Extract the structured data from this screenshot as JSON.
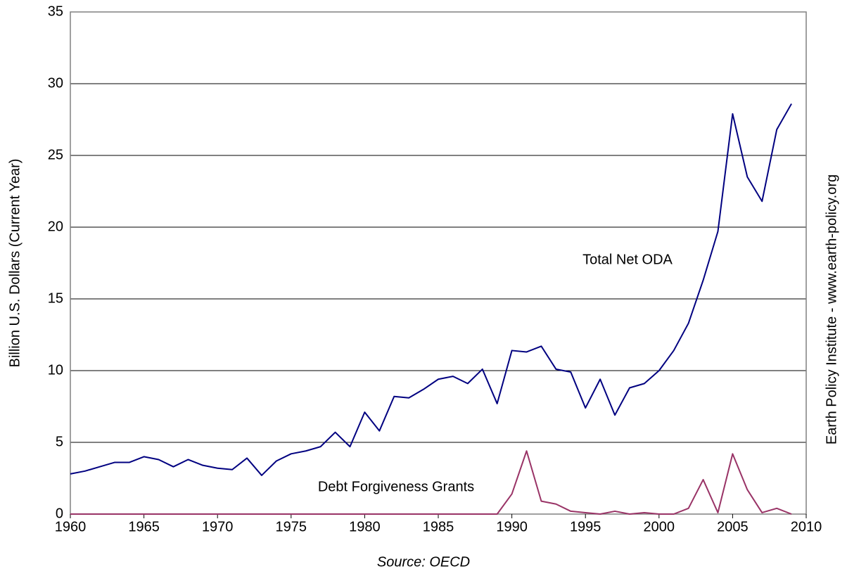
{
  "chart_data": {
    "type": "line",
    "y_label": "Billion U.S. Dollars (Current Year)",
    "source": "Source: OECD",
    "credit": "Earth Policy Institute - www.earth-policy.org",
    "annotations": [
      "Total Net ODA",
      "Debt Forgiveness Grants"
    ],
    "x": [
      1960,
      1961,
      1962,
      1963,
      1964,
      1965,
      1966,
      1967,
      1968,
      1969,
      1970,
      1971,
      1972,
      1973,
      1974,
      1975,
      1976,
      1977,
      1978,
      1979,
      1980,
      1981,
      1982,
      1983,
      1984,
      1985,
      1986,
      1987,
      1988,
      1989,
      1990,
      1991,
      1992,
      1993,
      1994,
      1995,
      1996,
      1997,
      1998,
      1999,
      2000,
      2001,
      2002,
      2003,
      2004,
      2005,
      2006,
      2007,
      2008,
      2009
    ],
    "series": [
      {
        "name": "Total Net ODA",
        "color": "#000080",
        "values": [
          2.8,
          3.0,
          3.3,
          3.6,
          3.6,
          4.0,
          3.8,
          3.3,
          3.8,
          3.4,
          3.2,
          3.1,
          3.9,
          2.7,
          3.7,
          4.2,
          4.4,
          4.7,
          5.7,
          4.7,
          7.1,
          5.8,
          8.2,
          8.1,
          8.7,
          9.4,
          9.6,
          9.1,
          10.1,
          7.7,
          11.4,
          11.3,
          11.7,
          10.1,
          9.9,
          7.4,
          9.4,
          6.9,
          8.8,
          9.1,
          10.0,
          11.4,
          13.3,
          16.3,
          19.7,
          27.9,
          23.5,
          21.8,
          26.8,
          28.6
        ]
      },
      {
        "name": "Debt Forgiveness Grants",
        "color": "#993366",
        "values": [
          0,
          0,
          0,
          0,
          0,
          0,
          0,
          0,
          0,
          0,
          0,
          0,
          0,
          0,
          0,
          0,
          0,
          0,
          0,
          0,
          0,
          0,
          0,
          0,
          0,
          0,
          0,
          0,
          0,
          0,
          1.4,
          4.4,
          0.9,
          0.7,
          0.2,
          0.1,
          0,
          0.2,
          0,
          0.1,
          0,
          0,
          0.4,
          2.4,
          0.1,
          4.2,
          1.7,
          0.1,
          0.4,
          0
        ]
      }
    ],
    "xlim": [
      1960,
      2010
    ],
    "xticks": [
      1960,
      1965,
      1970,
      1975,
      1980,
      1985,
      1990,
      1995,
      2000,
      2005,
      2010
    ],
    "ylim": [
      0,
      35
    ],
    "yticks": [
      0,
      5,
      10,
      15,
      20,
      25,
      30,
      35
    ],
    "grid": true
  }
}
